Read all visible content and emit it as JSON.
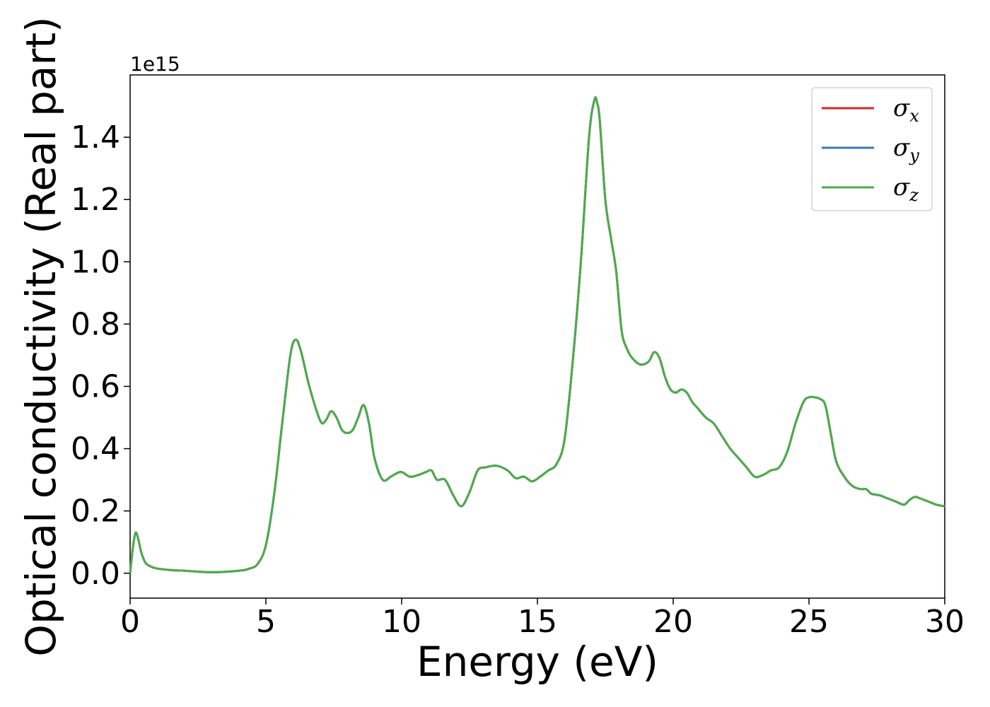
{
  "chart_data": {
    "type": "line",
    "xlabel": "Energy (eV)",
    "ylabel": "Optical conductivity (Real part)",
    "y_offset_label": "1e15",
    "y_multiplier": 1000000000000000.0,
    "xlim": [
      0,
      30
    ],
    "ylim": [
      -0.08,
      1.6
    ],
    "xticks": [
      0,
      5,
      10,
      15,
      20,
      25,
      30
    ],
    "yticks": [
      0.0,
      0.2,
      0.4,
      0.6,
      0.8,
      1.0,
      1.2,
      1.4
    ],
    "xtick_labels": [
      "0",
      "5",
      "10",
      "15",
      "20",
      "25",
      "30"
    ],
    "ytick_labels": [
      "0.0",
      "0.2",
      "0.4",
      "0.6",
      "0.8",
      "1.0",
      "1.2",
      "1.4"
    ],
    "grid": false,
    "legend_position": "top-right",
    "series": [
      {
        "name": "σ",
        "subscript": "x",
        "color": "#d62728"
      },
      {
        "name": "σ",
        "subscript": "y",
        "color": "#3a78b0"
      },
      {
        "name": "σ",
        "subscript": "z",
        "color": "#4dac4a"
      }
    ],
    "x": [
      0,
      0.1,
      0.2,
      0.3,
      0.4,
      0.5,
      0.6,
      0.8,
      1.0,
      1.5,
      2.0,
      3.0,
      4.0,
      4.4,
      4.7,
      5.0,
      5.3,
      5.6,
      5.9,
      6.1,
      6.3,
      6.6,
      7.0,
      7.2,
      7.4,
      7.6,
      7.8,
      8.0,
      8.2,
      8.4,
      8.6,
      8.8,
      9.0,
      9.3,
      9.6,
      9.8,
      10.0,
      10.3,
      10.6,
      10.9,
      11.1,
      11.3,
      11.6,
      11.9,
      12.2,
      12.5,
      12.8,
      13.1,
      13.5,
      13.9,
      14.2,
      14.5,
      14.8,
      15.1,
      15.4,
      15.7,
      16.0,
      16.3,
      16.6,
      16.9,
      17.1,
      17.2,
      17.3,
      17.5,
      17.7,
      17.9,
      18.1,
      18.3,
      18.5,
      18.8,
      19.1,
      19.3,
      19.5,
      19.7,
      19.9,
      20.1,
      20.3,
      20.5,
      20.7,
      20.9,
      21.2,
      21.5,
      21.8,
      22.1,
      22.4,
      22.7,
      23.0,
      23.3,
      23.6,
      23.9,
      24.2,
      24.5,
      24.8,
      25.0,
      25.2,
      25.4,
      25.6,
      25.8,
      26.0,
      26.3,
      26.6,
      26.9,
      27.1,
      27.3,
      27.6,
      27.9,
      28.2,
      28.5,
      28.7,
      28.9,
      29.1,
      29.4,
      29.7,
      30.0
    ],
    "values": [
      0.0,
      0.08,
      0.13,
      0.11,
      0.07,
      0.045,
      0.03,
      0.02,
      0.015,
      0.01,
      0.008,
      0.003,
      0.008,
      0.015,
      0.03,
      0.09,
      0.25,
      0.48,
      0.7,
      0.75,
      0.71,
      0.6,
      0.49,
      0.49,
      0.52,
      0.5,
      0.46,
      0.45,
      0.46,
      0.5,
      0.54,
      0.48,
      0.37,
      0.3,
      0.31,
      0.32,
      0.325,
      0.31,
      0.315,
      0.325,
      0.33,
      0.3,
      0.3,
      0.25,
      0.215,
      0.26,
      0.33,
      0.34,
      0.345,
      0.33,
      0.305,
      0.31,
      0.295,
      0.31,
      0.33,
      0.35,
      0.43,
      0.68,
      1.0,
      1.4,
      1.52,
      1.51,
      1.45,
      1.2,
      1.08,
      0.97,
      0.78,
      0.72,
      0.69,
      0.67,
      0.68,
      0.71,
      0.69,
      0.63,
      0.59,
      0.58,
      0.59,
      0.58,
      0.55,
      0.53,
      0.5,
      0.48,
      0.44,
      0.4,
      0.37,
      0.34,
      0.31,
      0.315,
      0.33,
      0.34,
      0.39,
      0.48,
      0.55,
      0.565,
      0.565,
      0.56,
      0.54,
      0.45,
      0.36,
      0.31,
      0.28,
      0.27,
      0.27,
      0.255,
      0.25,
      0.24,
      0.23,
      0.22,
      0.235,
      0.245,
      0.24,
      0.23,
      0.22,
      0.215
    ]
  }
}
